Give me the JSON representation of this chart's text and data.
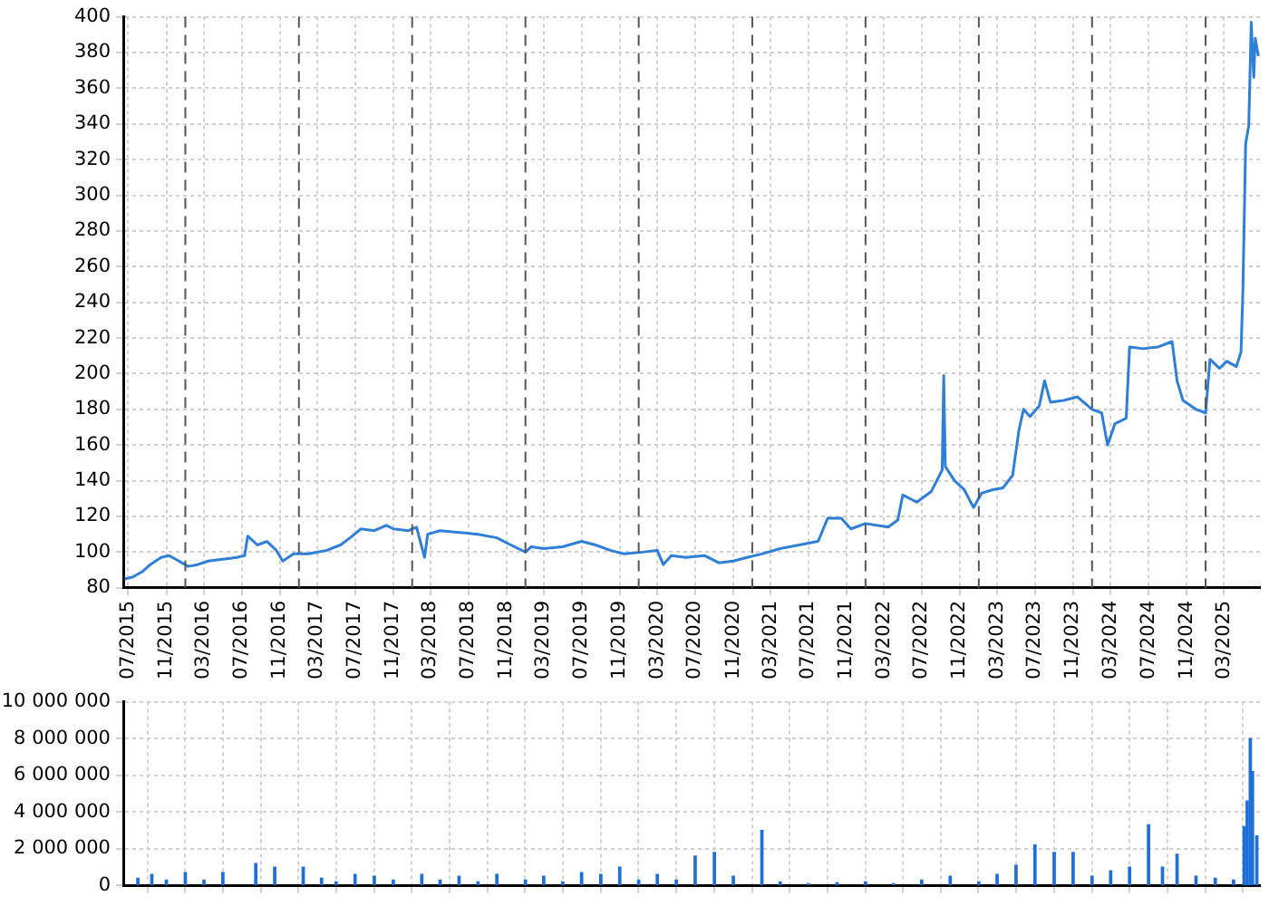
{
  "chart_data": [
    {
      "type": "line",
      "color": "#2f7fd9",
      "xlim": [
        "2015-06-15",
        "2025-06-25"
      ],
      "ylim": [
        80,
        400
      ],
      "yticks": [
        80,
        100,
        120,
        140,
        160,
        180,
        200,
        220,
        240,
        260,
        280,
        300,
        320,
        340,
        360,
        380,
        400
      ],
      "grid": true,
      "xticks": [
        {
          "value": "2015-07",
          "label": "07/2015"
        },
        {
          "value": "2015-11",
          "label": "11/2015"
        },
        {
          "value": "2016-03",
          "label": "03/2016"
        },
        {
          "value": "2016-07",
          "label": "07/2016"
        },
        {
          "value": "2016-11",
          "label": "11/2016"
        },
        {
          "value": "2017-03",
          "label": "03/2017"
        },
        {
          "value": "2017-07",
          "label": "07/2017"
        },
        {
          "value": "2017-11",
          "label": "11/2017"
        },
        {
          "value": "2018-03",
          "label": "03/2018"
        },
        {
          "value": "2018-07",
          "label": "07/2018"
        },
        {
          "value": "2018-11",
          "label": "11/2018"
        },
        {
          "value": "2019-03",
          "label": "03/2019"
        },
        {
          "value": "2019-07",
          "label": "07/2019"
        },
        {
          "value": "2019-11",
          "label": "11/2019"
        },
        {
          "value": "2020-03",
          "label": "03/2020"
        },
        {
          "value": "2020-07",
          "label": "07/2020"
        },
        {
          "value": "2020-11",
          "label": "11/2020"
        },
        {
          "value": "2021-03",
          "label": "03/2021"
        },
        {
          "value": "2021-07",
          "label": "07/2021"
        },
        {
          "value": "2021-11",
          "label": "11/2021"
        },
        {
          "value": "2022-03",
          "label": "03/2022"
        },
        {
          "value": "2022-07",
          "label": "07/2022"
        },
        {
          "value": "2022-11",
          "label": "11/2022"
        },
        {
          "value": "2023-03",
          "label": "03/2023"
        },
        {
          "value": "2023-07",
          "label": "07/2023"
        },
        {
          "value": "2023-11",
          "label": "11/2023"
        },
        {
          "value": "2024-03",
          "label": "03/2024"
        },
        {
          "value": "2024-07",
          "label": "07/2024"
        },
        {
          "value": "2024-11",
          "label": "11/2024"
        },
        {
          "value": "2025-03",
          "label": "03/2025"
        }
      ],
      "ref_lines": [
        {
          "axis": "x",
          "value": "2016-01-01",
          "color": "#555555",
          "line_style": "dashed"
        },
        {
          "axis": "x",
          "value": "2017-01-01",
          "color": "#555555",
          "line_style": "dashed"
        },
        {
          "axis": "x",
          "value": "2018-01-01",
          "color": "#555555",
          "line_style": "dashed"
        },
        {
          "axis": "x",
          "value": "2019-01-01",
          "color": "#555555",
          "line_style": "dashed"
        },
        {
          "axis": "x",
          "value": "2020-01-01",
          "color": "#555555",
          "line_style": "dashed"
        },
        {
          "axis": "x",
          "value": "2021-01-01",
          "color": "#555555",
          "line_style": "dashed"
        },
        {
          "axis": "x",
          "value": "2022-01-01",
          "color": "#555555",
          "line_style": "dashed"
        },
        {
          "axis": "x",
          "value": "2023-01-01",
          "color": "#555555",
          "line_style": "dashed"
        },
        {
          "axis": "x",
          "value": "2024-01-01",
          "color": "#555555",
          "line_style": "dashed"
        },
        {
          "axis": "x",
          "value": "2025-01-01",
          "color": "#555555",
          "line_style": "dashed"
        }
      ],
      "x": [
        "2015-06-20",
        "2015-07-15",
        "2015-08-15",
        "2015-09-10",
        "2015-10-15",
        "2015-11-10",
        "2015-12-01",
        "2016-01-10",
        "2016-02-10",
        "2016-03-15",
        "2016-05-01",
        "2016-06-15",
        "2016-07-10",
        "2016-07-20",
        "2016-08-20",
        "2016-09-20",
        "2016-10-20",
        "2016-11-10",
        "2016-12-15",
        "2017-02-01",
        "2017-04-01",
        "2017-05-15",
        "2017-06-15",
        "2017-07-20",
        "2017-09-01",
        "2017-10-10",
        "2017-11-01",
        "2017-12-20",
        "2018-01-15",
        "2018-02-10",
        "2018-02-20",
        "2018-04-01",
        "2018-06-01",
        "2018-08-01",
        "2018-10-01",
        "2018-11-15",
        "2019-01-01",
        "2019-01-20",
        "2019-03-01",
        "2019-05-01",
        "2019-07-01",
        "2019-08-15",
        "2019-10-01",
        "2019-11-15",
        "2020-01-15",
        "2020-03-01",
        "2020-03-20",
        "2020-04-15",
        "2020-06-01",
        "2020-08-01",
        "2020-09-15",
        "2020-11-01",
        "2020-12-15",
        "2021-02-01",
        "2021-04-01",
        "2021-06-01",
        "2021-08-01",
        "2021-09-01",
        "2021-10-15",
        "2021-11-15",
        "2022-01-01",
        "2022-03-15",
        "2022-04-15",
        "2022-05-01",
        "2022-06-15",
        "2022-08-01",
        "2022-09-05",
        "2022-09-10",
        "2022-09-15",
        "2022-10-15",
        "2022-11-15",
        "2022-12-15",
        "2023-01-10",
        "2023-02-15",
        "2023-03-20",
        "2023-04-20",
        "2023-05-10",
        "2023-05-25",
        "2023-06-15",
        "2023-07-15",
        "2023-08-01",
        "2023-08-20",
        "2023-10-01",
        "2023-11-15",
        "2024-01-01",
        "2024-02-01",
        "2024-02-20",
        "2024-03-15",
        "2024-04-20",
        "2024-05-01",
        "2024-06-15",
        "2024-08-01",
        "2024-09-15",
        "2024-10-01",
        "2024-10-20",
        "2024-12-01",
        "2025-01-01",
        "2025-01-15",
        "2025-02-15",
        "2025-03-10",
        "2025-04-10",
        "2025-04-25",
        "2025-05-01",
        "2025-05-10",
        "2025-05-20",
        "2025-05-28",
        "2025-06-05",
        "2025-06-10",
        "2025-06-20"
      ],
      "values": [
        85,
        86,
        89,
        93,
        97,
        98,
        96,
        92,
        93,
        95,
        96,
        97,
        98,
        109,
        104,
        106,
        101,
        95,
        99,
        99,
        101,
        104,
        108,
        113,
        112,
        115,
        113,
        112,
        114,
        97,
        110,
        112,
        111,
        110,
        108,
        104,
        100,
        103,
        102,
        103,
        106,
        104,
        101,
        99,
        100,
        101,
        93,
        98,
        97,
        98,
        94,
        95,
        97,
        99,
        102,
        104,
        106,
        119,
        119,
        113,
        116,
        114,
        118,
        132,
        128,
        134,
        146,
        199,
        148,
        140,
        135,
        125,
        133,
        135,
        136,
        143,
        168,
        180,
        176,
        182,
        196,
        184,
        185,
        187,
        180,
        178,
        160,
        172,
        175,
        215,
        214,
        215,
        218,
        196,
        185,
        180,
        178,
        208,
        203,
        207,
        204,
        212,
        246,
        329,
        339,
        397,
        366,
        388,
        378
      ]
    },
    {
      "type": "bar",
      "color": "#1f6fd6",
      "xlim": [
        "2015-06-15",
        "2025-06-25"
      ],
      "ylim": [
        0,
        10000000
      ],
      "yticks": [
        0,
        {
          "value": 2000000,
          "label": "2 000 000"
        },
        {
          "value": 4000000,
          "label": "4 000 000"
        },
        {
          "value": 6000000,
          "label": "6 000 000"
        },
        {
          "value": 8000000,
          "label": "8 000 000"
        },
        {
          "value": 10000000,
          "label": "10 000 000"
        }
      ],
      "grid": true,
      "tick_labels": "y",
      "xticks": [
        {
          "value": "2015-07",
          "label": null
        },
        {
          "value": "2015-11",
          "label": null
        },
        {
          "value": "2016-03",
          "label": null
        },
        {
          "value": "2016-07",
          "label": null
        },
        {
          "value": "2016-11",
          "label": null
        },
        {
          "value": "2017-03",
          "label": null
        },
        {
          "value": "2017-07",
          "label": null
        },
        {
          "value": "2017-11",
          "label": null
        },
        {
          "value": "2018-03",
          "label": null
        },
        {
          "value": "2018-07",
          "label": null
        },
        {
          "value": "2018-11",
          "label": null
        },
        {
          "value": "2019-03",
          "label": null
        },
        {
          "value": "2019-07",
          "label": null
        },
        {
          "value": "2019-11",
          "label": null
        },
        {
          "value": "2020-03",
          "label": null
        },
        {
          "value": "2020-07",
          "label": null
        },
        {
          "value": "2020-11",
          "label": null
        },
        {
          "value": "2021-03",
          "label": null
        },
        {
          "value": "2021-07",
          "label": null
        },
        {
          "value": "2021-11",
          "label": null
        },
        {
          "value": "2022-03",
          "label": null
        },
        {
          "value": "2022-07",
          "label": null
        },
        {
          "value": "2022-11",
          "label": null
        },
        {
          "value": "2023-03",
          "label": null
        },
        {
          "value": "2023-07",
          "label": null
        },
        {
          "value": "2023-11",
          "label": null
        },
        {
          "value": "2024-03",
          "label": null
        },
        {
          "value": "2024-07",
          "label": null
        },
        {
          "value": "2024-11",
          "label": null
        },
        {
          "value": "2025-03",
          "label": null
        }
      ],
      "x": [
        "2015-08-01",
        "2015-09-15",
        "2015-11-01",
        "2016-01-01",
        "2016-03-01",
        "2016-05-01",
        "2016-08-15",
        "2016-10-15",
        "2017-01-15",
        "2017-03-15",
        "2017-05-01",
        "2017-07-01",
        "2017-09-01",
        "2017-11-01",
        "2018-02-01",
        "2018-04-01",
        "2018-06-01",
        "2018-08-01",
        "2018-10-01",
        "2019-01-01",
        "2019-03-01",
        "2019-05-01",
        "2019-07-01",
        "2019-09-01",
        "2019-11-01",
        "2020-01-01",
        "2020-03-01",
        "2020-05-01",
        "2020-07-01",
        "2020-09-01",
        "2020-11-01",
        "2021-02-01",
        "2021-04-01",
        "2021-07-01",
        "2021-10-01",
        "2022-01-01",
        "2022-04-01",
        "2022-07-01",
        "2022-10-01",
        "2023-01-01",
        "2023-03-01",
        "2023-05-01",
        "2023-07-01",
        "2023-09-01",
        "2023-11-01",
        "2024-01-01",
        "2024-03-01",
        "2024-05-01",
        "2024-07-01",
        "2024-08-15",
        "2024-10-01",
        "2024-12-01",
        "2025-02-01",
        "2025-04-01",
        "2025-05-05",
        "2025-05-15",
        "2025-05-25",
        "2025-06-01",
        "2025-06-15"
      ],
      "values": [
        400000,
        600000,
        300000,
        700000,
        300000,
        700000,
        1200000,
        1000000,
        1000000,
        400000,
        200000,
        600000,
        500000,
        300000,
        600000,
        300000,
        500000,
        200000,
        600000,
        300000,
        500000,
        200000,
        700000,
        600000,
        1000000,
        300000,
        600000,
        300000,
        1600000,
        1800000,
        500000,
        3000000,
        200000,
        100000,
        150000,
        200000,
        100000,
        300000,
        500000,
        200000,
        600000,
        1100000,
        2200000,
        1800000,
        1800000,
        500000,
        800000,
        1000000,
        3300000,
        1000000,
        1700000,
        500000,
        400000,
        300000,
        3200000,
        4600000,
        8000000,
        6200000,
        2700000
      ]
    }
  ]
}
